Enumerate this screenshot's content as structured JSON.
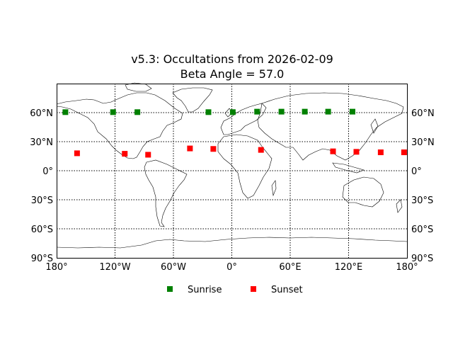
{
  "chart_data": {
    "type": "scatter",
    "title": "v5.3: Occultations from 2026-02-09",
    "subtitle": "Beta Angle = 57.0",
    "xlim": [
      -180,
      180
    ],
    "ylim": [
      -90,
      90
    ],
    "grid": true,
    "legend_position": "bottom-center",
    "x_ticks": [
      {
        "value": -180,
        "label": "180°"
      },
      {
        "value": -120,
        "label": "120°W"
      },
      {
        "value": -60,
        "label": "60°W"
      },
      {
        "value": 0,
        "label": "0°"
      },
      {
        "value": 60,
        "label": "60°E"
      },
      {
        "value": 120,
        "label": "120°E"
      },
      {
        "value": 180,
        "label": "180°"
      }
    ],
    "y_ticks": [
      {
        "value": 60,
        "label": "60°N"
      },
      {
        "value": 30,
        "label": "30°N"
      },
      {
        "value": 0,
        "label": "0°"
      },
      {
        "value": -30,
        "label": "30°S"
      },
      {
        "value": -60,
        "label": "60°S"
      },
      {
        "value": -90,
        "label": "90°S"
      }
    ],
    "series": [
      {
        "name": "Sunrise",
        "color": "#008000",
        "marker": "square",
        "points": [
          {
            "x": -171,
            "y": 60.5
          },
          {
            "x": -122,
            "y": 60.5
          },
          {
            "x": -97,
            "y": 60.5
          },
          {
            "x": -24,
            "y": 60.5
          },
          {
            "x": 1,
            "y": 60.5
          },
          {
            "x": 26,
            "y": 61
          },
          {
            "x": 51,
            "y": 61
          },
          {
            "x": 75,
            "y": 61
          },
          {
            "x": 99,
            "y": 61
          },
          {
            "x": 124,
            "y": 61
          }
        ]
      },
      {
        "name": "Sunset",
        "color": "#ff0000",
        "marker": "square",
        "points": [
          {
            "x": -159,
            "y": 18
          },
          {
            "x": -110,
            "y": 17.5
          },
          {
            "x": -86,
            "y": 16.5
          },
          {
            "x": -43,
            "y": 23
          },
          {
            "x": -19,
            "y": 22.5
          },
          {
            "x": 30,
            "y": 21.5
          },
          {
            "x": 104,
            "y": 20
          },
          {
            "x": 128,
            "y": 19.5
          },
          {
            "x": 153,
            "y": 19
          },
          {
            "x": 177,
            "y": 19
          }
        ]
      }
    ]
  }
}
